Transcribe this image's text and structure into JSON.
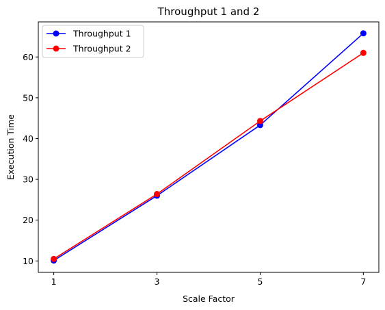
{
  "chart_data": {
    "type": "line",
    "title": "Throughput 1 and 2",
    "xlabel": "Scale Factor",
    "ylabel": "Execution Time",
    "x": [
      1,
      3,
      5,
      7
    ],
    "xticks": [
      1,
      3,
      5,
      7
    ],
    "yticks": [
      10,
      20,
      30,
      40,
      50,
      60
    ],
    "xlim": [
      0.7,
      7.3
    ],
    "ylim": [
      7.2,
      68.6
    ],
    "grid": false,
    "legend_position": "upper-left",
    "series": [
      {
        "name": "Throughput 1",
        "color": "#0000ff",
        "values": [
          10.1,
          26.0,
          43.3,
          65.8
        ]
      },
      {
        "name": "Throughput 2",
        "color": "#ff0000",
        "values": [
          10.5,
          26.4,
          44.3,
          61.0
        ]
      }
    ]
  }
}
